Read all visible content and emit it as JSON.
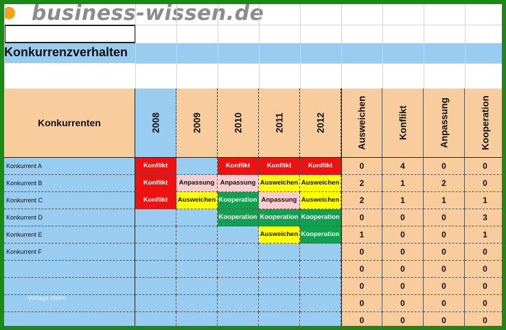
{
  "site": {
    "logo_text": "business-wissen.de"
  },
  "sheet": {
    "title": "Konkurrenzverhalten",
    "competitor_header": "Konkurrenten",
    "years": [
      "2008",
      "2009",
      "2010",
      "2011",
      "2012"
    ],
    "behavior_headers": [
      "Ausweichen",
      "Konflikt",
      "Anpassung",
      "Kooperation"
    ],
    "rows": [
      {
        "name": "Konkurrent A",
        "cells": [
          "Konflikt",
          "",
          "Konflikt",
          "Konflikt",
          "Konflikt"
        ],
        "counts": [
          "0",
          "4",
          "0",
          "0"
        ]
      },
      {
        "name": "Konkurrent B",
        "cells": [
          "Konflikt",
          "Anpassung",
          "Anpassung",
          "Ausweichen",
          "Ausweichen"
        ],
        "counts": [
          "2",
          "1",
          "2",
          "0"
        ]
      },
      {
        "name": "Konkurrent C",
        "cells": [
          "Konflikt",
          "Ausweichen",
          "Kooperation",
          "Anpassung",
          "Ausweichen"
        ],
        "counts": [
          "2",
          "1",
          "1",
          "1"
        ]
      },
      {
        "name": "Konkurrent D",
        "cells": [
          "",
          "",
          "Kooperation",
          "Kooperation",
          "Kooperation"
        ],
        "counts": [
          "0",
          "0",
          "0",
          "3"
        ]
      },
      {
        "name": "Konkurrent E",
        "cells": [
          "",
          "",
          "",
          "Ausweichen",
          "Kooperation"
        ],
        "counts": [
          "1",
          "0",
          "0",
          "1"
        ]
      },
      {
        "name": "Konkurrent F",
        "cells": [
          "",
          "",
          "",
          "",
          ""
        ],
        "counts": [
          "0",
          "0",
          "0",
          "0"
        ]
      },
      {
        "name": "",
        "cells": [
          "",
          "",
          "",
          "",
          ""
        ],
        "counts": [
          "0",
          "0",
          "0",
          "0"
        ]
      },
      {
        "name": "",
        "cells": [
          "",
          "",
          "",
          "",
          ""
        ],
        "counts": [
          "0",
          "0",
          "0",
          "0"
        ]
      },
      {
        "name": "",
        "cells": [
          "",
          "",
          "",
          "",
          ""
        ],
        "counts": [
          "0",
          "0",
          "0",
          "0"
        ]
      },
      {
        "name": "",
        "cells": [
          "",
          "",
          "",
          "",
          ""
        ],
        "counts": [
          "0",
          "0",
          "0",
          "0"
        ]
      }
    ],
    "watermark": "Vorlage Ideen"
  },
  "colors": {
    "Konflikt": {
      "bg": "#ee1111",
      "fg": "#ffffff"
    },
    "Anpassung": {
      "bg": "#f9cdd0",
      "fg": "#111111"
    },
    "Ausweichen": {
      "bg": "#ffff00",
      "fg": "#111111"
    },
    "Kooperation": {
      "bg": "#10a050",
      "fg": "#ffffff"
    },
    "blue": "#99ccf1",
    "orange": "#f8cc9c",
    "frame": "#1a8a14"
  }
}
